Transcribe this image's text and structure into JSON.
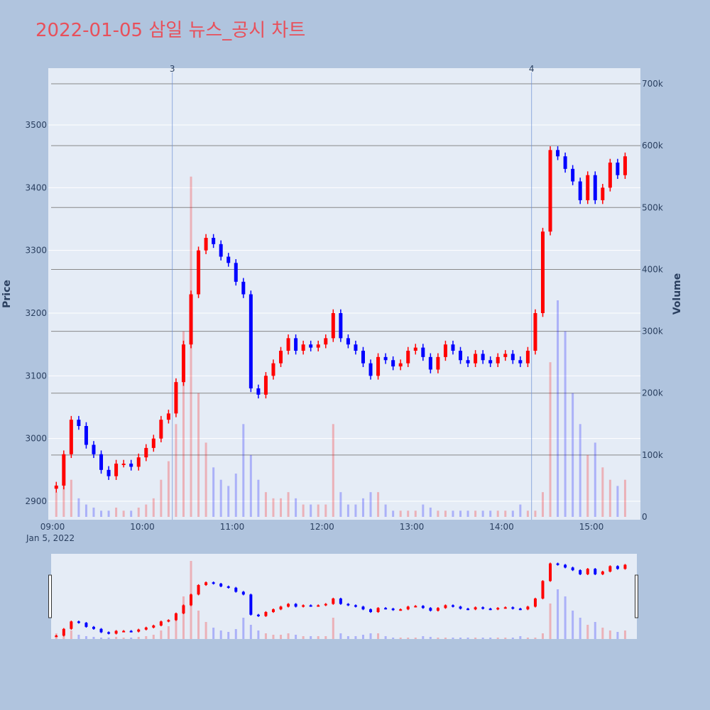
{
  "title": "2022-01-05 삼일 뉴스_공시 차트",
  "chart_data": {
    "type": "candlestick",
    "ylabel": "Price",
    "y2label": "Volume",
    "ylim": [
      2875,
      3590
    ],
    "y2lim": [
      0,
      730000
    ],
    "yticks": [
      "2900",
      "3000",
      "3100",
      "3200",
      "3300",
      "3400",
      "3500"
    ],
    "y2ticks": [
      "0",
      "100k",
      "200k",
      "300k",
      "400k",
      "500k",
      "600k",
      "700k"
    ],
    "xticks": [
      "09:00",
      "10:00",
      "11:00",
      "12:00",
      "13:00",
      "14:00",
      "15:00"
    ],
    "xdate": "Jan 5, 2022",
    "interval_minutes": 5,
    "start": "09:00",
    "close": [
      2925,
      2975,
      3030,
      3020,
      2990,
      2975,
      2950,
      2940,
      2960,
      2960,
      2955,
      2970,
      2985,
      3000,
      3030,
      3040,
      3090,
      3150,
      3230,
      3300,
      3320,
      3310,
      3290,
      3280,
      3250,
      3230,
      3080,
      3070,
      3100,
      3120,
      3140,
      3160,
      3140,
      3150,
      3145,
      3150,
      3160,
      3200,
      3160,
      3150,
      3140,
      3120,
      3100,
      3130,
      3125,
      3115,
      3120,
      3140,
      3145,
      3130,
      3110,
      3130,
      3150,
      3140,
      3125,
      3120,
      3135,
      3125,
      3120,
      3130,
      3135,
      3125,
      3120,
      3140,
      3200,
      3330,
      3460,
      3450,
      3430,
      3410,
      3380,
      3420,
      3380,
      3400,
      3440,
      3420,
      3450
    ],
    "volume_k": [
      40,
      70,
      60,
      30,
      20,
      15,
      10,
      10,
      15,
      10,
      10,
      15,
      20,
      30,
      60,
      90,
      150,
      300,
      550,
      200,
      120,
      80,
      60,
      50,
      70,
      150,
      100,
      60,
      40,
      30,
      30,
      40,
      30,
      20,
      20,
      20,
      20,
      150,
      40,
      20,
      20,
      30,
      40,
      40,
      20,
      10,
      10,
      10,
      10,
      20,
      15,
      10,
      10,
      10,
      10,
      10,
      10,
      10,
      10,
      10,
      10,
      10,
      20,
      10,
      10,
      40,
      250,
      350,
      300,
      200,
      150,
      100,
      120,
      80,
      60,
      50,
      60
    ],
    "annotations": [
      {
        "label": "3",
        "time": "10:20"
      },
      {
        "label": "4",
        "time": "14:20"
      }
    ],
    "colors": {
      "up": "#ff0000",
      "down": "#0000ff",
      "plot_bg": "#e5ecf6",
      "paper_bg": "#b0c4de",
      "title": "#e8505b"
    },
    "grid": true,
    "rangeslider": true
  }
}
